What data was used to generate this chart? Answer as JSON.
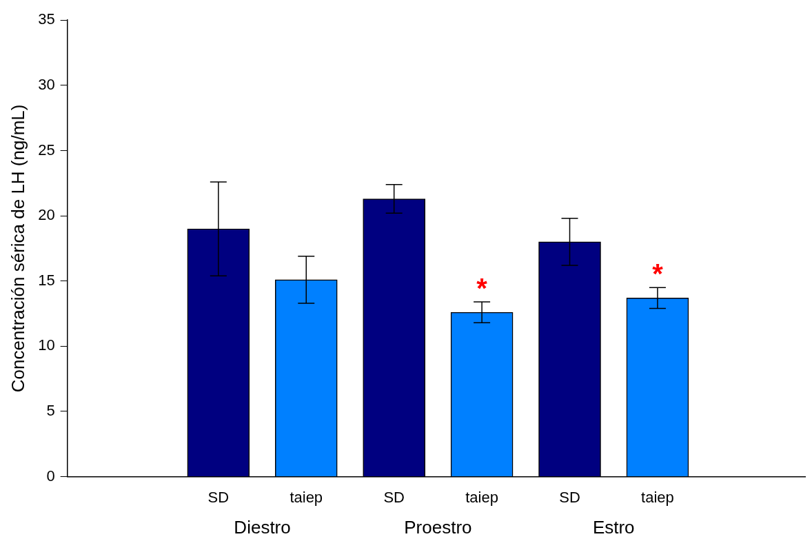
{
  "chart_data": {
    "type": "bar",
    "ylabel": "Concentración sérica de LH (ng/mL)",
    "categories": [
      "SD",
      "taiep",
      "SD",
      "taiep",
      "SD",
      "taiep"
    ],
    "values": [
      19.0,
      15.1,
      21.3,
      12.6,
      18.0,
      13.7
    ],
    "colors": [
      "#000080",
      "#0080ff",
      "#000080",
      "#0080ff",
      "#000080",
      "#0080ff"
    ],
    "errors": [
      3.6,
      1.8,
      1.1,
      0.8,
      1.8,
      0.8
    ],
    "value_labels": [
      null,
      null,
      null,
      "*",
      null,
      "*"
    ],
    "annotations": [
      "Diestro",
      "Proestro",
      "Estro"
    ],
    "ylim": [
      0,
      35
    ],
    "yticks": [
      0,
      5,
      10,
      15,
      20,
      25,
      30,
      35
    ],
    "grid": false,
    "legend": false
  }
}
